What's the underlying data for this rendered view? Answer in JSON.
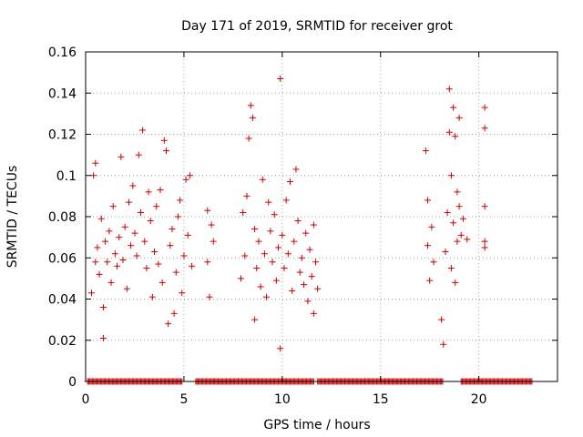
{
  "chart_data": {
    "type": "scatter",
    "title": "Day 171 of 2019, SRMTID for receiver grot",
    "xlabel": "GPS time / hours",
    "ylabel": "SRMTID / TECUs",
    "xlim": [
      0,
      24
    ],
    "ylim": [
      0,
      0.16
    ],
    "xticks": [
      0,
      5,
      10,
      15,
      20
    ],
    "xtick_labels": [
      "0",
      "5",
      "10",
      "15",
      "20"
    ],
    "yticks": [
      0,
      0.02,
      0.04,
      0.06,
      0.08,
      0.1,
      0.12,
      0.14,
      0.16
    ],
    "ytick_labels": [
      "0",
      "0.02",
      "0.04",
      "0.06",
      "0.08",
      "0.1",
      "0.12",
      "0.14",
      "0.16"
    ],
    "grid": true,
    "marker": "+",
    "color": "#cc0000",
    "series": [
      {
        "name": "SRMTID",
        "points": [
          [
            0.3,
            0.043
          ],
          [
            0.4,
            0.1
          ],
          [
            0.5,
            0.106
          ],
          [
            0.5,
            0.058
          ],
          [
            0.6,
            0.065
          ],
          [
            0.7,
            0.052
          ],
          [
            0.8,
            0.079
          ],
          [
            0.9,
            0.036
          ],
          [
            0.9,
            0.021
          ],
          [
            1.0,
            0.068
          ],
          [
            1.1,
            0.058
          ],
          [
            1.2,
            0.073
          ],
          [
            1.3,
            0.048
          ],
          [
            1.4,
            0.085
          ],
          [
            1.5,
            0.062
          ],
          [
            1.6,
            0.056
          ],
          [
            1.7,
            0.07
          ],
          [
            1.8,
            0.109
          ],
          [
            1.9,
            0.059
          ],
          [
            2.0,
            0.075
          ],
          [
            2.1,
            0.045
          ],
          [
            2.2,
            0.087
          ],
          [
            2.3,
            0.066
          ],
          [
            2.4,
            0.095
          ],
          [
            2.5,
            0.072
          ],
          [
            2.6,
            0.061
          ],
          [
            2.7,
            0.11
          ],
          [
            2.8,
            0.082
          ],
          [
            2.9,
            0.122
          ],
          [
            3.0,
            0.068
          ],
          [
            3.1,
            0.055
          ],
          [
            3.2,
            0.092
          ],
          [
            3.3,
            0.078
          ],
          [
            3.4,
            0.041
          ],
          [
            3.5,
            0.063
          ],
          [
            3.6,
            0.085
          ],
          [
            3.7,
            0.057
          ],
          [
            3.8,
            0.093
          ],
          [
            3.9,
            0.048
          ],
          [
            4.0,
            0.117
          ],
          [
            4.1,
            0.112
          ],
          [
            4.2,
            0.028
          ],
          [
            4.3,
            0.066
          ],
          [
            4.4,
            0.074
          ],
          [
            4.5,
            0.033
          ],
          [
            4.6,
            0.053
          ],
          [
            4.7,
            0.08
          ],
          [
            4.8,
            0.088
          ],
          [
            4.9,
            0.043
          ],
          [
            5.0,
            0.061
          ],
          [
            5.1,
            0.098
          ],
          [
            5.2,
            0.071
          ],
          [
            5.3,
            0.1
          ],
          [
            5.4,
            0.056
          ],
          [
            6.2,
            0.083
          ],
          [
            6.2,
            0.058
          ],
          [
            6.3,
            0.041
          ],
          [
            6.4,
            0.076
          ],
          [
            6.5,
            0.068
          ],
          [
            7.9,
            0.05
          ],
          [
            8.0,
            0.082
          ],
          [
            8.1,
            0.061
          ],
          [
            8.2,
            0.09
          ],
          [
            8.3,
            0.118
          ],
          [
            8.4,
            0.134
          ],
          [
            8.5,
            0.128
          ],
          [
            8.6,
            0.074
          ],
          [
            8.6,
            0.03
          ],
          [
            8.7,
            0.055
          ],
          [
            8.8,
            0.068
          ],
          [
            8.9,
            0.046
          ],
          [
            9.0,
            0.098
          ],
          [
            9.1,
            0.062
          ],
          [
            9.2,
            0.041
          ],
          [
            9.3,
            0.087
          ],
          [
            9.4,
            0.073
          ],
          [
            9.5,
            0.058
          ],
          [
            9.6,
            0.081
          ],
          [
            9.7,
            0.049
          ],
          [
            9.8,
            0.065
          ],
          [
            9.9,
            0.016
          ],
          [
            9.9,
            0.147
          ],
          [
            10.0,
            0.071
          ],
          [
            10.1,
            0.055
          ],
          [
            10.2,
            0.088
          ],
          [
            10.3,
            0.062
          ],
          [
            10.4,
            0.097
          ],
          [
            10.5,
            0.044
          ],
          [
            10.6,
            0.068
          ],
          [
            10.7,
            0.103
          ],
          [
            10.8,
            0.078
          ],
          [
            10.9,
            0.053
          ],
          [
            11.0,
            0.06
          ],
          [
            11.1,
            0.047
          ],
          [
            11.2,
            0.072
          ],
          [
            11.3,
            0.039
          ],
          [
            11.4,
            0.064
          ],
          [
            11.5,
            0.051
          ],
          [
            11.6,
            0.076
          ],
          [
            11.6,
            0.033
          ],
          [
            11.7,
            0.058
          ],
          [
            11.8,
            0.045
          ],
          [
            17.3,
            0.112
          ],
          [
            17.4,
            0.088
          ],
          [
            17.4,
            0.066
          ],
          [
            17.5,
            0.049
          ],
          [
            17.6,
            0.075
          ],
          [
            17.7,
            0.058
          ],
          [
            18.1,
            0.03
          ],
          [
            18.2,
            0.018
          ],
          [
            18.3,
            0.063
          ],
          [
            18.4,
            0.082
          ],
          [
            18.5,
            0.121
          ],
          [
            18.5,
            0.142
          ],
          [
            18.6,
            0.1
          ],
          [
            18.6,
            0.055
          ],
          [
            18.7,
            0.133
          ],
          [
            18.7,
            0.077
          ],
          [
            18.8,
            0.119
          ],
          [
            18.8,
            0.048
          ],
          [
            18.9,
            0.092
          ],
          [
            18.9,
            0.068
          ],
          [
            19.0,
            0.128
          ],
          [
            19.0,
            0.085
          ],
          [
            19.1,
            0.071
          ],
          [
            19.2,
            0.079
          ],
          [
            19.4,
            0.069
          ],
          [
            20.3,
            0.133
          ],
          [
            20.3,
            0.123
          ],
          [
            20.3,
            0.085
          ],
          [
            20.3,
            0.068
          ],
          [
            20.3,
            0.065
          ]
        ]
      }
    ],
    "zero_band": [
      [
        0.1,
        4.9
      ],
      [
        5.6,
        11.6
      ],
      [
        11.8,
        18.2
      ],
      [
        19.1,
        22.7
      ]
    ]
  }
}
